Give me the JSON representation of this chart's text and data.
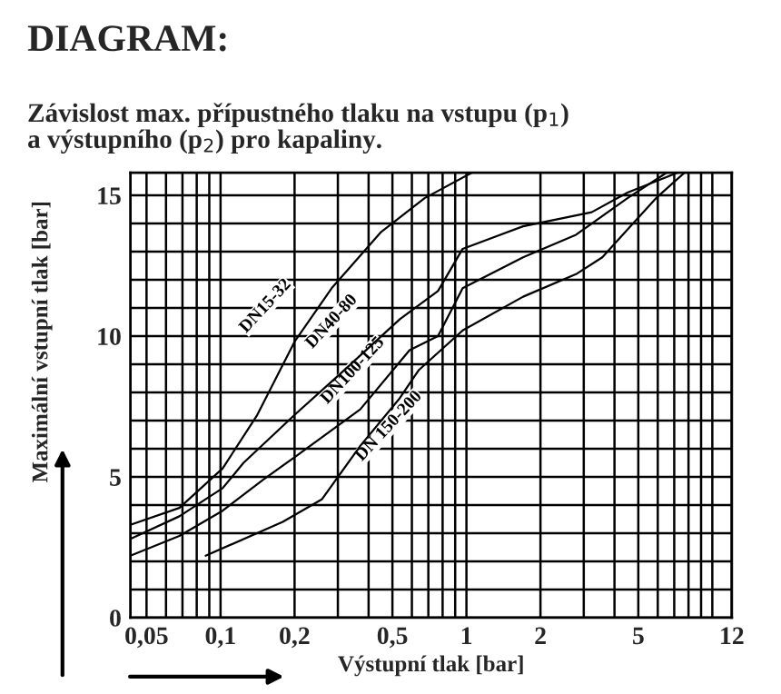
{
  "chart_data": {
    "type": "line",
    "title": "DIAGRAM:",
    "subtitle": "Závislost max. přípustného tlaku na vstupu (p$_{1}$)\na výstupního (p$_{2}$) pro kapaliny.",
    "xlabel": "Výstupní tlak [bar]",
    "ylabel": "Maximální vstupní tlak [bar]",
    "log": "x",
    "grid": true,
    "marker": "none",
    "line_style": "solid",
    "xlim": [
      0.043,
      12
    ],
    "ylim": [
      0,
      15.8
    ],
    "xticks": [
      {
        "value": 0.05,
        "label": "0,05"
      },
      {
        "value": 0.06,
        "label": null
      },
      {
        "value": 0.07,
        "label": null
      },
      {
        "value": 0.08,
        "label": null
      },
      {
        "value": 0.09,
        "label": null
      },
      {
        "value": 0.1,
        "label": "0,1"
      },
      {
        "value": 0.2,
        "label": "0,2"
      },
      {
        "value": 0.3,
        "label": null
      },
      {
        "value": 0.4,
        "label": null
      },
      {
        "value": 0.5,
        "label": "0,5"
      },
      {
        "value": 0.6,
        "label": null
      },
      {
        "value": 0.7,
        "label": null
      },
      {
        "value": 0.8,
        "label": null
      },
      {
        "value": 0.9,
        "label": null
      },
      1,
      2,
      {
        "value": 3,
        "label": null
      },
      {
        "value": 4,
        "label": null
      },
      5,
      {
        "value": 6,
        "label": null
      },
      {
        "value": 7,
        "label": null
      },
      {
        "value": 8,
        "label": null
      },
      {
        "value": 9,
        "label": null
      },
      {
        "value": 10,
        "label": null
      },
      12
    ],
    "yticks": [
      0,
      {
        "value": 1,
        "label": null
      },
      {
        "value": 2,
        "label": null
      },
      {
        "value": 3,
        "label": null
      },
      {
        "value": 4,
        "label": null
      },
      5,
      {
        "value": 6,
        "label": null
      },
      {
        "value": 7,
        "label": null
      },
      {
        "value": 8,
        "label": null
      },
      {
        "value": 9,
        "label": null
      },
      10,
      {
        "value": 11,
        "label": null
      },
      {
        "value": 12,
        "label": null
      },
      {
        "value": 13,
        "label": null
      },
      {
        "value": 14,
        "label": null
      },
      15
    ],
    "series": [
      {
        "name": "DN15-32",
        "color": "#000000",
        "x": [
          0.043,
          0.068,
          0.102,
          0.141,
          0.2,
          0.283,
          0.45,
          0.676,
          1.05
        ],
        "values": [
          3.3,
          3.9,
          5.3,
          7.2,
          9.8,
          11.7,
          13.7,
          14.9,
          15.8
        ]
      },
      {
        "name": "DN40-80",
        "color": "#000000",
        "x": [
          0.043,
          0.068,
          0.102,
          0.124,
          0.2,
          0.31,
          0.536,
          0.766,
          0.965,
          1.7,
          3.23,
          4.52,
          7.2
        ],
        "values": [
          2.8,
          3.6,
          4.6,
          5.5,
          7.2,
          8.7,
          10.6,
          11.6,
          13.1,
          13.9,
          14.4,
          15.1,
          15.8
        ]
      },
      {
        "name": "DN100-125",
        "color": "#000000",
        "x": [
          0.043,
          0.068,
          0.102,
          0.149,
          0.2,
          0.37,
          0.587,
          0.766,
          0.965,
          1.7,
          2.79,
          4.52,
          6.5
        ],
        "values": [
          2.2,
          2.9,
          3.8,
          4.9,
          5.7,
          7.4,
          9.5,
          10.0,
          11.7,
          12.8,
          13.6,
          14.9,
          15.8
        ]
      },
      {
        "name": "DN 150-200",
        "color": "#000000",
        "x": [
          0.087,
          0.179,
          0.258,
          0.37,
          0.536,
          0.641,
          0.965,
          1.7,
          2.79,
          3.57,
          5.9,
          7.7
        ],
        "values": [
          2.2,
          3.4,
          4.2,
          6.1,
          7.8,
          8.8,
          10.2,
          11.4,
          12.2,
          12.8,
          14.9,
          15.8
        ]
      }
    ]
  }
}
